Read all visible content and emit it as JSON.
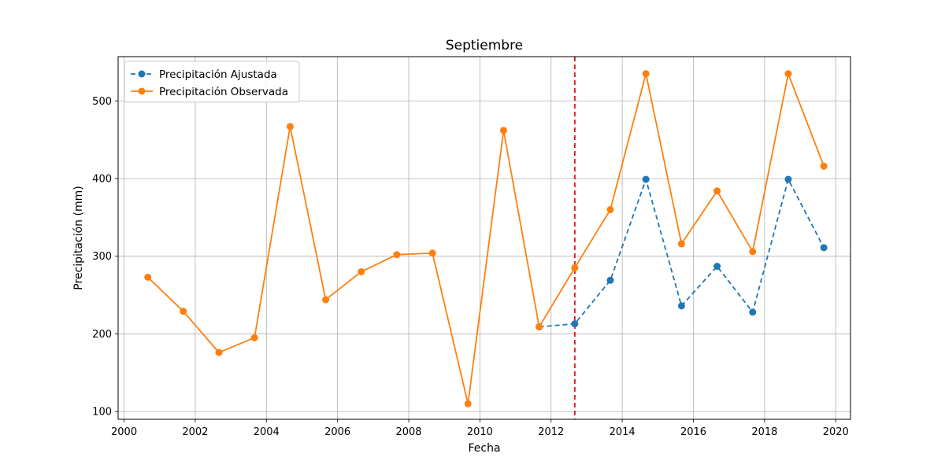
{
  "chart_data": {
    "type": "line",
    "title": "Septiembre",
    "xlabel": "Fecha",
    "ylabel": "Precipitación (mm)",
    "x_is_date": true,
    "xlim": [
      "1999-11-01",
      "2020-06-01"
    ],
    "ylim": [
      90,
      557
    ],
    "x_ticks": [
      "2000",
      "2002",
      "2004",
      "2006",
      "2008",
      "2010",
      "2012",
      "2014",
      "2016",
      "2018",
      "2020"
    ],
    "y_ticks": [
      100,
      200,
      300,
      400,
      500
    ],
    "grid": true,
    "legend_position": "top-left",
    "split_date": "2012-09-01",
    "split_line_color": "#d62728",
    "series": [
      {
        "name": "Precipitación Ajustada",
        "color": "#1f77b4",
        "line_style": "dashed",
        "marker": "circle",
        "x": [
          "2011-09-01",
          "2012-09-01",
          "2013-09-01",
          "2014-09-01",
          "2015-09-01",
          "2016-09-01",
          "2017-09-01",
          "2018-09-01",
          "2019-09-01"
        ],
        "values": [
          209,
          213,
          269,
          399,
          236,
          287,
          228,
          399,
          311
        ]
      },
      {
        "name": "Precipitación Observada",
        "color": "#ff7f0e",
        "line_style": "solid",
        "marker": "circle",
        "x": [
          "2000-09-01",
          "2001-09-01",
          "2002-09-01",
          "2003-09-01",
          "2004-09-01",
          "2005-09-01",
          "2006-09-01",
          "2007-09-01",
          "2008-09-01",
          "2009-09-01",
          "2010-09-01",
          "2011-09-01",
          "2012-09-01",
          "2013-09-01",
          "2014-09-01",
          "2015-09-01",
          "2016-09-01",
          "2017-09-01",
          "2018-09-01",
          "2019-09-01"
        ],
        "values": [
          273,
          229,
          176,
          195,
          467,
          244,
          280,
          302,
          304,
          110,
          462,
          209,
          285,
          360,
          535,
          316,
          384,
          306,
          535,
          416
        ]
      }
    ]
  }
}
